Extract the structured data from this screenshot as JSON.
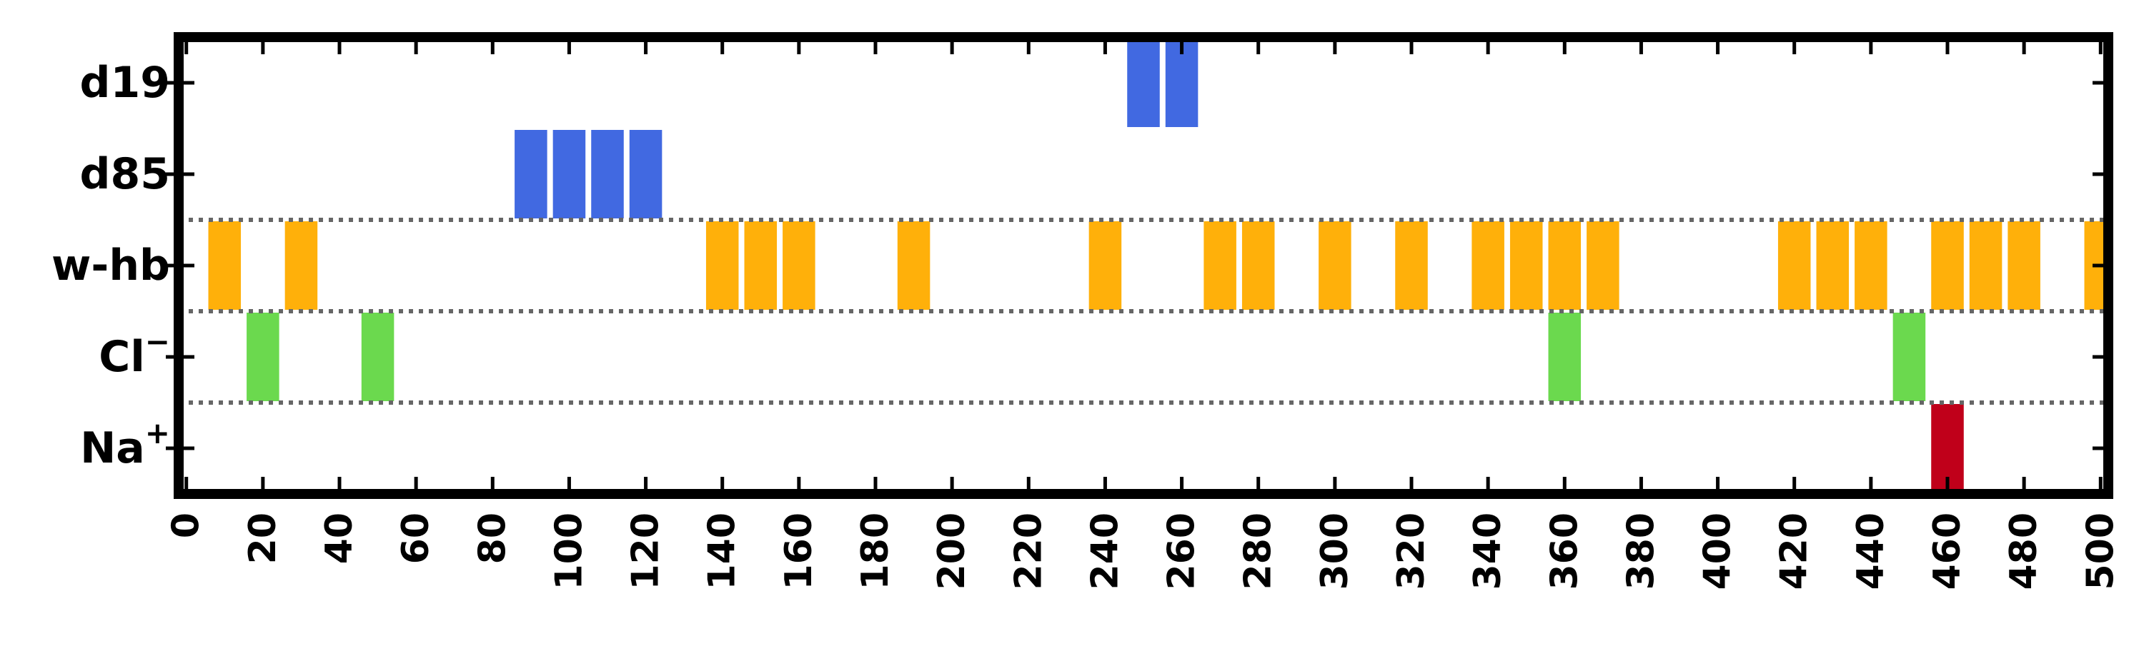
{
  "chart_data": {
    "type": "event-raster",
    "title": "",
    "xlabel": "",
    "ylabel": "",
    "xlim": [
      -2,
      502
    ],
    "x_ticks": [
      0,
      20,
      40,
      60,
      80,
      100,
      120,
      140,
      160,
      180,
      200,
      220,
      240,
      260,
      280,
      300,
      320,
      340,
      360,
      380,
      400,
      420,
      440,
      460,
      480,
      500
    ],
    "bar_width": 8.5,
    "separators_after_row": [
      "w-hb",
      "Cl-",
      "Na+"
    ],
    "rows": [
      {
        "key": "d19",
        "label_main": "d19",
        "label_sup": "",
        "color": "#4169e1",
        "events": [
          250,
          260
        ]
      },
      {
        "key": "d85",
        "label_main": "d85",
        "label_sup": "",
        "color": "#4169e1",
        "events": [
          90,
          100,
          110,
          120
        ]
      },
      {
        "key": "w-hb",
        "label_main": "w-hb",
        "label_sup": "",
        "color": "#ffb00a",
        "events": [
          10,
          30,
          140,
          150,
          160,
          190,
          240,
          270,
          280,
          300,
          320,
          340,
          350,
          360,
          370,
          420,
          430,
          440,
          460,
          470,
          480,
          500
        ]
      },
      {
        "key": "Cl-",
        "label_main": "Cl",
        "label_sup": "−",
        "color": "#6bd94e",
        "events": [
          20,
          50,
          360,
          450
        ]
      },
      {
        "key": "Na+",
        "label_main": "Na",
        "label_sup": "+",
        "color": "#c0001a",
        "events": [
          460
        ]
      }
    ]
  }
}
